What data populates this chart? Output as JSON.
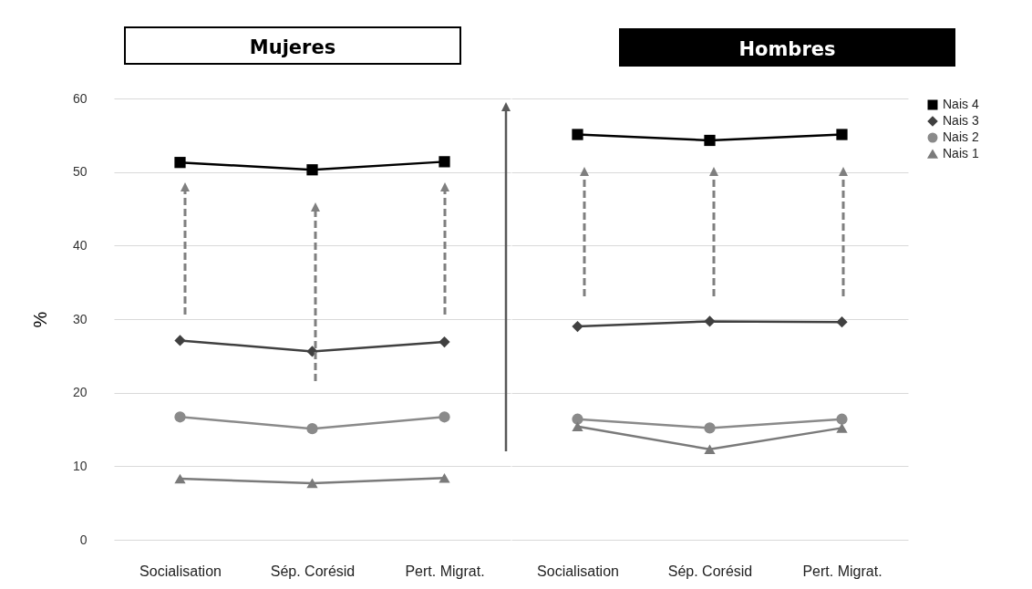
{
  "chart_data": [
    {
      "type": "line",
      "title": "Mujeres",
      "ylabel": "%",
      "categories": [
        "Socialisation",
        "Sép. Corésid",
        "Pert. Migrat."
      ],
      "ylim": [
        0,
        60
      ],
      "yticks": [
        0,
        10,
        20,
        30,
        40,
        50,
        60
      ],
      "grid": "y",
      "legend": false,
      "series": [
        {
          "color": "#000000",
          "marker": "square",
          "values": [
            51.3,
            50.3,
            51.4
          ]
        },
        {
          "color": "#404040",
          "marker": "diamond",
          "values": [
            27.1,
            25.6,
            26.9
          ]
        },
        {
          "color": "#8a8a8a",
          "marker": "circle",
          "values": [
            16.7,
            15.1,
            16.7
          ]
        },
        {
          "color": "#7a7a7a",
          "marker": "triangle",
          "values": [
            8.3,
            7.7,
            8.4
          ]
        }
      ]
    },
    {
      "type": "line",
      "title": "Hombres",
      "categories": [
        "Socialisation",
        "Sép. Corésid",
        "Pert. Migrat."
      ],
      "ylim": [
        0,
        60
      ],
      "yticks": [
        0,
        10,
        20,
        30,
        40,
        50,
        60
      ],
      "grid": "y",
      "legend": "right",
      "tick_labels": "x",
      "series": [
        {
          "name": "Nais 4",
          "color": "#000000",
          "marker": "square",
          "values": [
            55.1,
            54.3,
            55.1
          ]
        },
        {
          "name": "Nais 3",
          "color": "#404040",
          "marker": "diamond",
          "values": [
            29.0,
            29.7,
            29.6
          ]
        },
        {
          "name": "Nais 2",
          "color": "#8a8a8a",
          "marker": "circle",
          "values": [
            16.4,
            15.2,
            16.4
          ]
        },
        {
          "name": "Nais 1",
          "color": "#7a7a7a",
          "marker": "triangle",
          "values": [
            15.4,
            12.3,
            15.2
          ]
        }
      ]
    }
  ]
}
